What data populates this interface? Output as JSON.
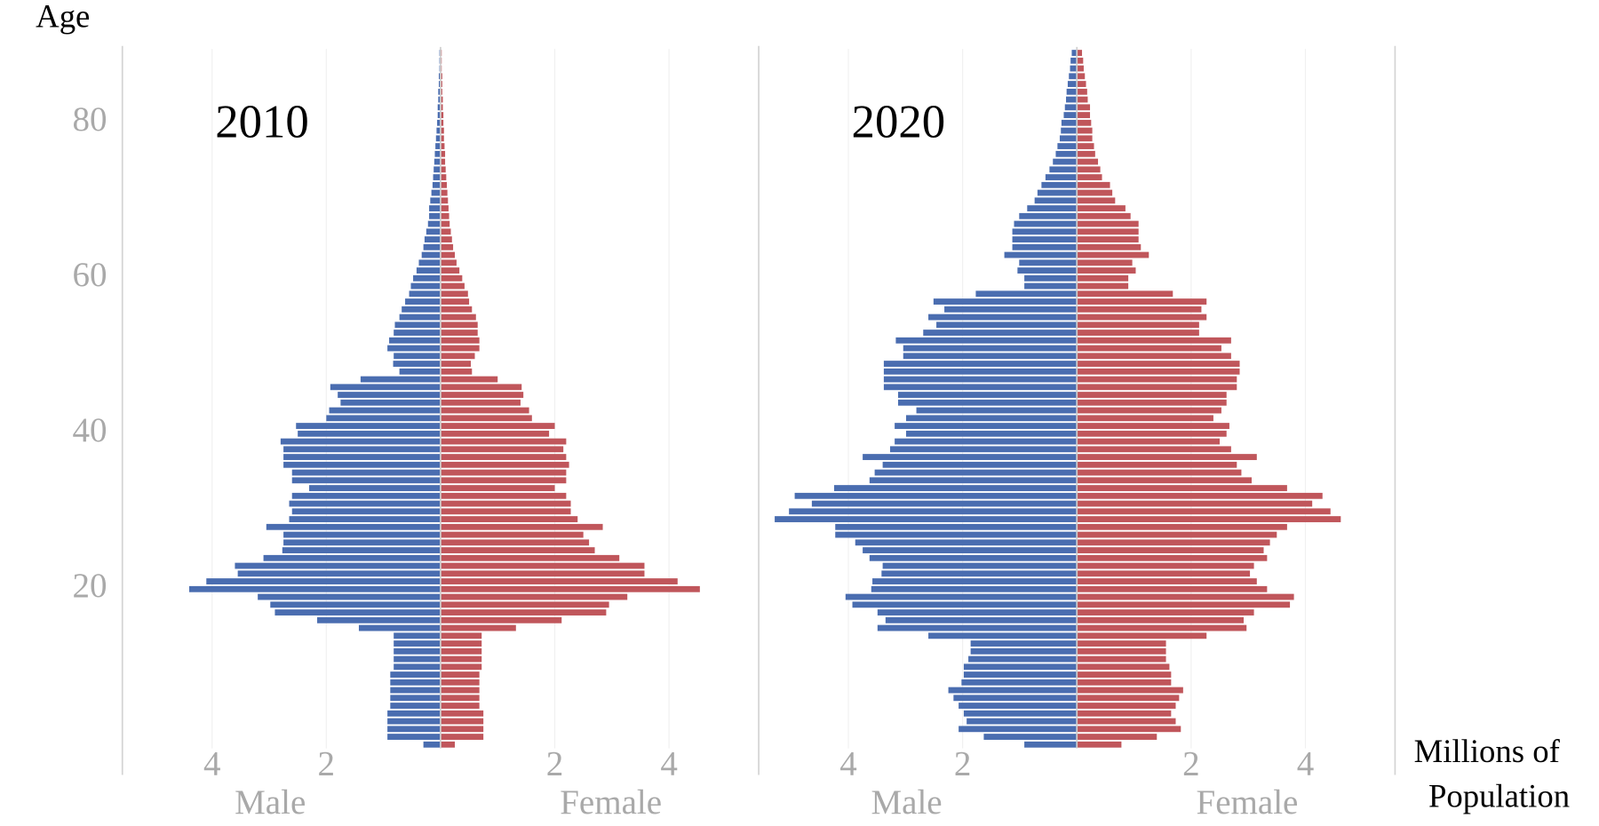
{
  "y_label": "Age",
  "x_label": [
    "Millions of",
    "Population"
  ],
  "chart_data": [
    {
      "type": "pyramid",
      "title": "2010",
      "y": [
        0,
        1,
        2,
        3,
        4,
        5,
        6,
        7,
        8,
        9,
        10,
        11,
        12,
        13,
        14,
        15,
        16,
        17,
        18,
        19,
        20,
        21,
        22,
        23,
        24,
        25,
        26,
        27,
        28,
        29,
        30,
        31,
        32,
        33,
        34,
        35,
        36,
        37,
        38,
        39,
        40,
        41,
        42,
        43,
        44,
        45,
        46,
        47,
        48,
        49,
        50,
        51,
        52,
        53,
        54,
        55,
        56,
        57,
        58,
        59,
        60,
        61,
        62,
        63,
        64,
        65,
        66,
        67,
        68,
        69,
        70,
        71,
        72,
        73,
        74,
        75,
        76,
        77,
        78,
        79,
        80,
        81,
        82,
        83,
        84,
        85,
        86,
        87,
        88,
        89
      ],
      "series": [
        {
          "name": "Male",
          "color": "#4a6db0",
          "values": [
            0.3,
            0.93,
            0.93,
            0.93,
            0.93,
            0.88,
            0.88,
            0.88,
            0.88,
            0.88,
            0.82,
            0.82,
            0.82,
            0.82,
            0.82,
            1.43,
            2.16,
            2.9,
            2.98,
            3.2,
            4.4,
            4.1,
            3.55,
            3.6,
            3.1,
            2.77,
            2.75,
            2.75,
            3.05,
            2.65,
            2.6,
            2.65,
            2.6,
            2.3,
            2.6,
            2.6,
            2.75,
            2.75,
            2.75,
            2.8,
            2.5,
            2.53,
            2.0,
            1.95,
            1.75,
            1.8,
            1.93,
            1.4,
            0.72,
            0.83,
            0.82,
            0.93,
            0.9,
            0.82,
            0.8,
            0.72,
            0.68,
            0.62,
            0.55,
            0.52,
            0.48,
            0.42,
            0.38,
            0.33,
            0.3,
            0.28,
            0.25,
            0.22,
            0.2,
            0.2,
            0.18,
            0.16,
            0.14,
            0.13,
            0.12,
            0.11,
            0.1,
            0.09,
            0.08,
            0.07,
            0.06,
            0.05,
            0.05,
            0.04,
            0.04,
            0.03,
            0.03,
            0.02,
            0.02,
            0.02
          ]
        },
        {
          "name": "Female",
          "color": "#c0565b",
          "values": [
            0.25,
            0.75,
            0.75,
            0.75,
            0.75,
            0.68,
            0.68,
            0.68,
            0.68,
            0.68,
            0.72,
            0.72,
            0.72,
            0.72,
            0.72,
            1.32,
            2.12,
            2.9,
            2.95,
            3.27,
            4.54,
            4.15,
            3.57,
            3.57,
            3.13,
            2.7,
            2.6,
            2.5,
            2.84,
            2.4,
            2.28,
            2.28,
            2.2,
            2.0,
            2.2,
            2.2,
            2.25,
            2.2,
            2.15,
            2.2,
            1.9,
            2.0,
            1.6,
            1.55,
            1.4,
            1.45,
            1.42,
            1.0,
            0.55,
            0.53,
            0.6,
            0.68,
            0.68,
            0.65,
            0.65,
            0.62,
            0.55,
            0.5,
            0.48,
            0.42,
            0.38,
            0.33,
            0.28,
            0.25,
            0.22,
            0.2,
            0.18,
            0.16,
            0.15,
            0.14,
            0.13,
            0.12,
            0.11,
            0.1,
            0.09,
            0.08,
            0.08,
            0.07,
            0.06,
            0.06,
            0.05,
            0.05,
            0.04,
            0.04,
            0.03,
            0.03,
            0.03,
            0.02,
            0.02,
            0.02
          ]
        }
      ],
      "xlim": [
        0,
        5.57
      ],
      "xticks": [
        2,
        4
      ],
      "ylim": [
        -0.5,
        89.5
      ],
      "yticks": [
        20,
        40,
        60,
        80
      ],
      "grid": true
    },
    {
      "type": "pyramid",
      "title": "2020",
      "y": [
        0,
        1,
        2,
        3,
        4,
        5,
        6,
        7,
        8,
        9,
        10,
        11,
        12,
        13,
        14,
        15,
        16,
        17,
        18,
        19,
        20,
        21,
        22,
        23,
        24,
        25,
        26,
        27,
        28,
        29,
        30,
        31,
        32,
        33,
        34,
        35,
        36,
        37,
        38,
        39,
        40,
        41,
        42,
        43,
        44,
        45,
        46,
        47,
        48,
        49,
        50,
        51,
        52,
        53,
        54,
        55,
        56,
        57,
        58,
        59,
        60,
        61,
        62,
        63,
        64,
        65,
        66,
        67,
        68,
        69,
        70,
        71,
        72,
        73,
        74,
        75,
        76,
        77,
        78,
        79,
        80,
        81,
        82,
        83,
        84,
        85,
        86,
        87,
        88,
        89
      ],
      "series": [
        {
          "name": "Male",
          "color": "#4a6db0",
          "values": [
            0.92,
            1.63,
            2.07,
            1.93,
            1.98,
            2.07,
            2.16,
            2.25,
            2.02,
            1.98,
            1.98,
            1.9,
            1.86,
            1.86,
            2.6,
            3.49,
            3.35,
            3.49,
            3.93,
            4.05,
            3.6,
            3.58,
            3.42,
            3.4,
            3.63,
            3.75,
            3.88,
            4.23,
            4.23,
            5.29,
            5.04,
            4.64,
            4.94,
            4.25,
            3.63,
            3.54,
            3.4,
            3.75,
            3.27,
            3.19,
            2.99,
            3.19,
            2.99,
            2.81,
            3.13,
            3.13,
            3.38,
            3.38,
            3.38,
            3.38,
            3.04,
            3.04,
            3.17,
            2.69,
            2.46,
            2.6,
            2.32,
            2.51,
            1.77,
            0.92,
            0.92,
            1.04,
            1.01,
            1.27,
            1.13,
            1.13,
            1.13,
            1.1,
            1.01,
            0.87,
            0.74,
            0.69,
            0.62,
            0.55,
            0.48,
            0.42,
            0.37,
            0.34,
            0.3,
            0.28,
            0.27,
            0.23,
            0.21,
            0.19,
            0.18,
            0.16,
            0.14,
            0.12,
            0.11,
            0.09
          ]
        },
        {
          "name": "Female",
          "color": "#c0565b",
          "values": [
            0.78,
            1.4,
            1.82,
            1.73,
            1.65,
            1.73,
            1.79,
            1.86,
            1.65,
            1.65,
            1.62,
            1.56,
            1.56,
            1.56,
            2.27,
            2.97,
            2.92,
            3.1,
            3.73,
            3.8,
            3.33,
            3.15,
            3.03,
            3.1,
            3.33,
            3.27,
            3.38,
            3.5,
            3.68,
            4.62,
            4.44,
            4.12,
            4.3,
            3.68,
            3.06,
            2.88,
            2.8,
            3.15,
            2.7,
            2.5,
            2.62,
            2.67,
            2.39,
            2.53,
            2.62,
            2.62,
            2.8,
            2.8,
            2.85,
            2.85,
            2.7,
            2.53,
            2.7,
            2.14,
            2.14,
            2.27,
            2.18,
            2.27,
            1.68,
            0.9,
            0.9,
            1.03,
            0.97,
            1.26,
            1.12,
            1.08,
            1.08,
            1.08,
            0.94,
            0.85,
            0.67,
            0.62,
            0.58,
            0.44,
            0.41,
            0.37,
            0.32,
            0.3,
            0.27,
            0.27,
            0.25,
            0.23,
            0.23,
            0.19,
            0.18,
            0.16,
            0.14,
            0.12,
            0.11,
            0.09
          ]
        }
      ],
      "xlim": [
        0,
        5.57
      ],
      "xticks": [
        2,
        4
      ],
      "ylim": [
        -0.5,
        89.5
      ],
      "grid": true
    }
  ]
}
